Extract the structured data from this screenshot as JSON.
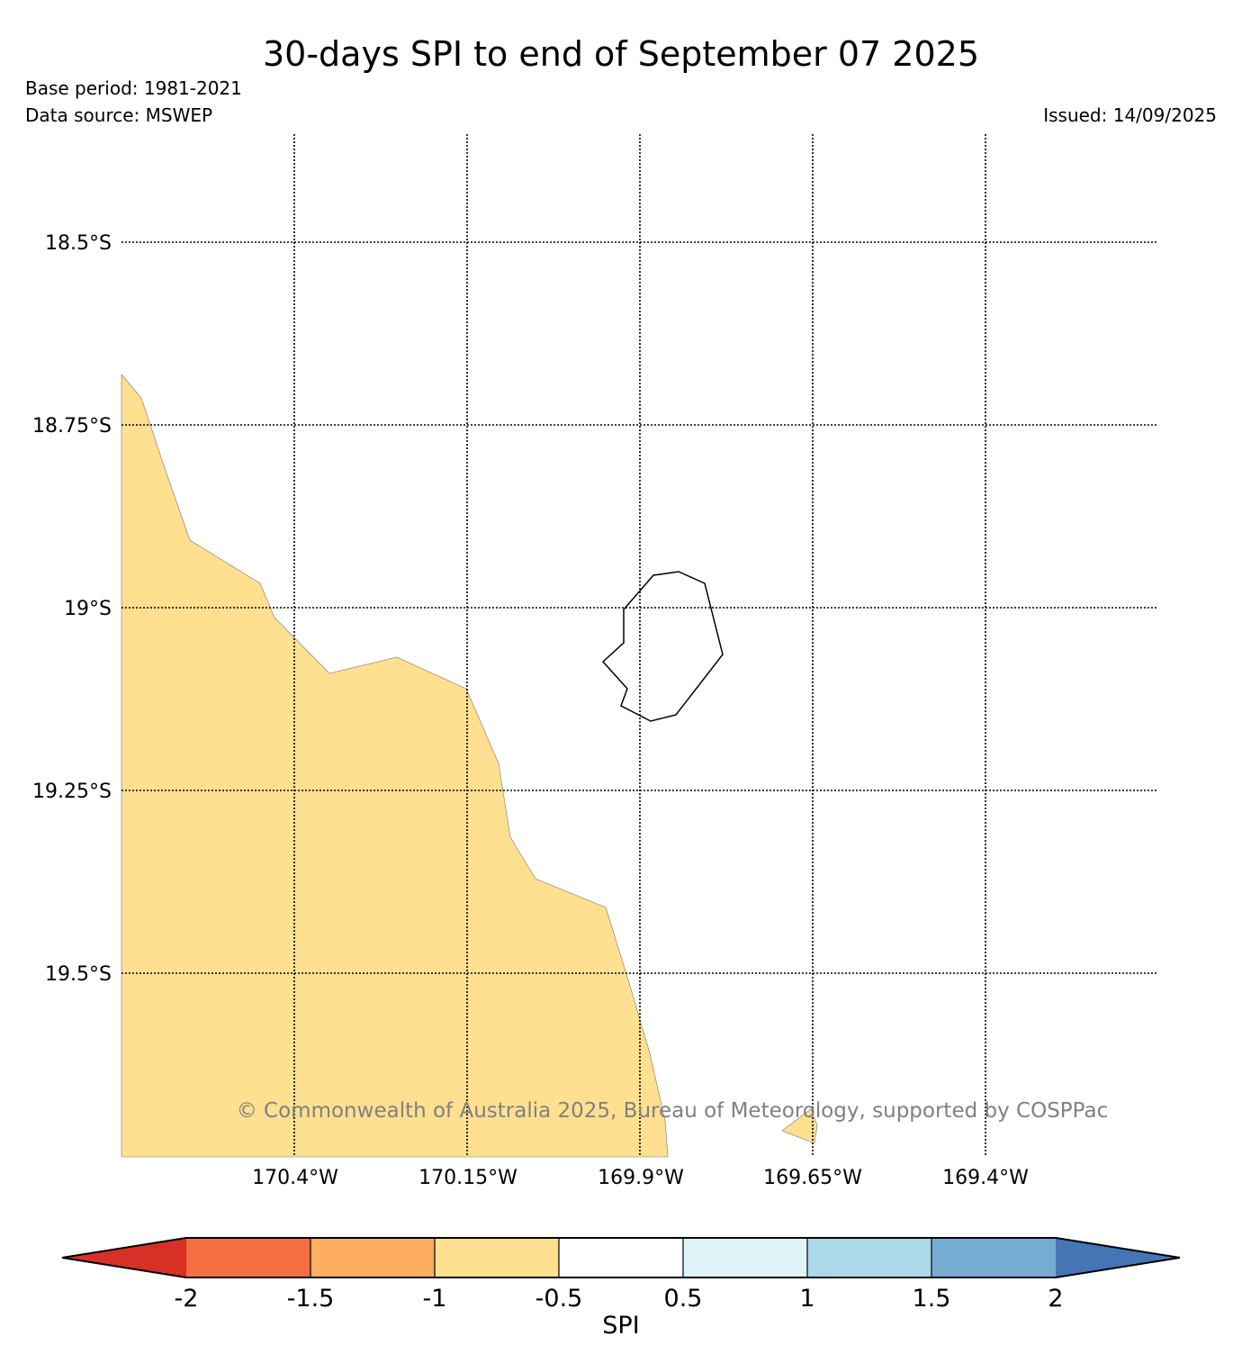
{
  "header": {
    "title": "30-days SPI to end of September 07 2025",
    "base_period": "Base period: 1981-2021",
    "data_source": "Data source: MSWEP",
    "issued": "Issued: 14/09/2025"
  },
  "map": {
    "lat_labels": [
      "18.5°S",
      "18.75°S",
      "19°S",
      "19.25°S",
      "19.5°S"
    ],
    "lon_labels": [
      "170.4°W",
      "170.15°W",
      "169.9°W",
      "169.65°W",
      "169.4°W"
    ],
    "fill_category": "-1 to -0.5",
    "fill_color": "#fee090",
    "island_outline": "Niue",
    "grid": "dotted",
    "copyright": "© Commonwealth of Australia 2025, Bureau of Meteorology, supported by COSPPac"
  },
  "colorbar": {
    "label": "SPI",
    "ticks": [
      "-2",
      "-1.5",
      "-1",
      "-0.5",
      "0.5",
      "1",
      "1.5",
      "2"
    ],
    "colors": [
      "#d73027",
      "#f46d43",
      "#fdae61",
      "#fee090",
      "#ffffff",
      "#e0f3f8",
      "#abd9e9",
      "#74add1",
      "#4575b4"
    ]
  }
}
